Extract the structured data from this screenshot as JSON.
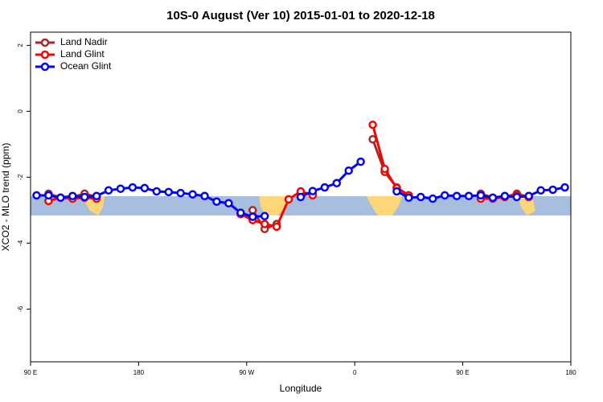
{
  "chart_data": {
    "type": "line",
    "title": "10S-0 August (Ver 10)   2015-01-01 to 2020-12-18",
    "x_label": "Longitude",
    "y_label": "XCO2 - MLO trend (ppm)",
    "x": [
      95,
      105,
      115,
      125,
      135,
      145,
      155,
      165,
      175,
      185,
      195,
      205,
      215,
      225,
      235,
      245,
      255,
      265,
      275,
      285,
      295,
      305,
      315,
      325,
      335,
      345,
      355,
      365,
      375,
      385,
      395,
      405,
      415,
      425,
      435,
      445,
      455,
      465,
      475,
      485,
      495,
      505,
      515,
      525,
      535
    ],
    "series": [
      {
        "name": "Land Nadir",
        "color": "#a52a2a",
        "values": [
          null,
          -2.5,
          -2.62,
          -2.6,
          -2.5,
          -2.6,
          null,
          null,
          null,
          null,
          null,
          null,
          null,
          null,
          null,
          null,
          null,
          null,
          -3.0,
          -3.57,
          -3.42,
          null,
          -2.45,
          -2.52,
          null,
          null,
          null,
          null,
          -0.85,
          -1.84,
          -2.31,
          -2.55,
          null,
          null,
          null,
          null,
          null,
          -2.5,
          -2.62,
          -2.6,
          -2.5,
          -2.6,
          null,
          null,
          null
        ]
      },
      {
        "name": "Land Glint",
        "color": "#ff0000",
        "values": [
          null,
          -2.72,
          -2.62,
          -2.65,
          -2.62,
          -2.65,
          null,
          null,
          null,
          null,
          null,
          null,
          null,
          null,
          null,
          null,
          null,
          -3.12,
          -3.3,
          -3.42,
          -3.5,
          -2.67,
          -2.43,
          -2.55,
          null,
          null,
          null,
          null,
          -0.41,
          -1.75,
          -2.33,
          -2.55,
          null,
          null,
          null,
          null,
          null,
          -2.65,
          -2.65,
          -2.6,
          -2.55,
          -2.6,
          null,
          null,
          null
        ]
      },
      {
        "name": "Ocean Glint",
        "color": "#0000ff",
        "values": [
          -2.55,
          -2.55,
          -2.62,
          -2.57,
          -2.6,
          -2.57,
          -2.4,
          -2.35,
          -2.31,
          -2.33,
          -2.43,
          -2.45,
          -2.48,
          -2.52,
          -2.57,
          -2.74,
          -2.79,
          -3.08,
          -3.2,
          -3.18,
          null,
          null,
          -2.6,
          -2.42,
          -2.31,
          -2.18,
          -1.8,
          -1.53,
          null,
          null,
          -2.43,
          -2.62,
          -2.6,
          -2.65,
          -2.55,
          -2.57,
          -2.57,
          -2.55,
          -2.62,
          -2.57,
          -2.6,
          -2.57,
          -2.4,
          -2.38,
          -2.31
        ]
      }
    ],
    "xlim": [
      90,
      540
    ],
    "xticks": [
      {
        "value": 90,
        "label": "90 E"
      },
      180,
      {
        "value": 270,
        "label": "90 W"
      },
      {
        "value": 360,
        "label": "0"
      },
      {
        "value": 450,
        "label": "90 E"
      },
      {
        "value": 540,
        "label": "180"
      }
    ],
    "ylim": [
      -7.6,
      2.4
    ],
    "yticks": [
      2,
      0,
      -2,
      -4,
      -6
    ],
    "legend": "top-left"
  }
}
